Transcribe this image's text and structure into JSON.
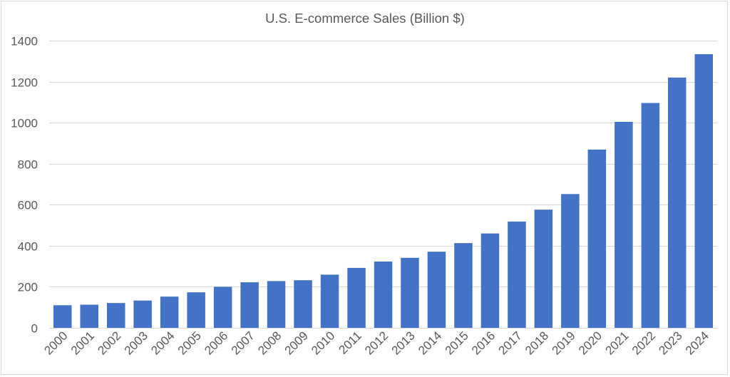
{
  "chart_data": {
    "type": "bar",
    "title": "U.S. E-commerce Sales (Billion $)",
    "xlabel": "",
    "ylabel": "",
    "categories": [
      "2000",
      "2001",
      "2002",
      "2003",
      "2004",
      "2005",
      "2006",
      "2007",
      "2008",
      "2009",
      "2010",
      "2011",
      "2012",
      "2013",
      "2014",
      "2015",
      "2016",
      "2017",
      "2018",
      "2019",
      "2020",
      "2021",
      "2022",
      "2023",
      "2024"
    ],
    "values": [
      110,
      113,
      121,
      133,
      152,
      173,
      200,
      222,
      228,
      232,
      259,
      292,
      323,
      341,
      371,
      413,
      460,
      518,
      576,
      652,
      869,
      1004,
      1096,
      1220,
      1334
    ],
    "ylim": [
      0,
      1400
    ],
    "yticks": [
      0,
      200,
      400,
      600,
      800,
      1000,
      1200,
      1400
    ],
    "grid": true,
    "legend": "none",
    "bar_color": "#4472c4",
    "grid_color": "#d9d9d9"
  }
}
